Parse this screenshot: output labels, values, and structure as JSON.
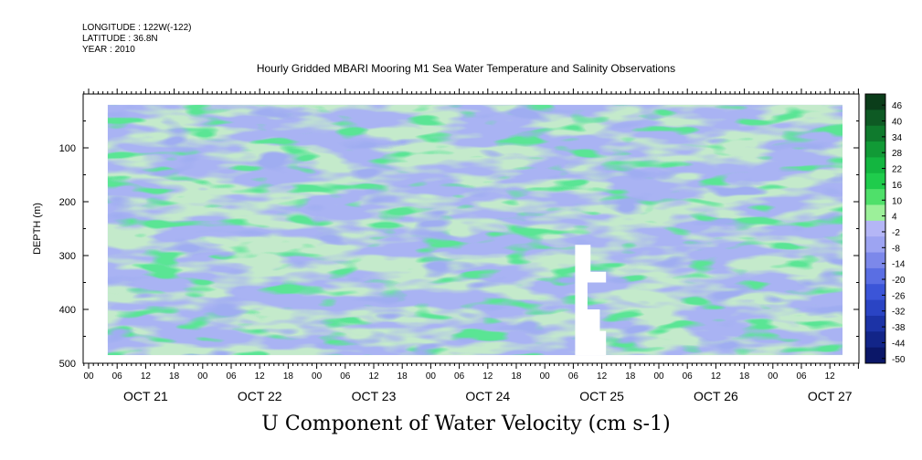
{
  "header": {
    "longitude": "LONGITUDE : 122W(-122)",
    "latitude": "LATITUDE : 36.8N",
    "year": "YEAR : 2010"
  },
  "chart_data": {
    "type": "heatmap",
    "title": "Hourly Gridded MBARI Mooring M1 Sea Water Temperature and Salinity Observations",
    "caption": "U Component of Water Velocity (cm s-1)",
    "ylabel": "DEPTH (m)",
    "y_reversed": true,
    "ylim": [
      500,
      0
    ],
    "y_ticks": [
      100,
      200,
      300,
      400,
      500
    ],
    "x_days": [
      "OCT 21",
      "OCT 22",
      "OCT 23",
      "OCT 24",
      "OCT 25",
      "OCT 26",
      "OCT 27"
    ],
    "x_hour_ticks": [
      "00",
      "06",
      "12",
      "18"
    ],
    "xlim_hours_from_oct20_18": [
      0,
      160
    ],
    "data_extent": {
      "hours_from_oct20_18": [
        4,
        160
      ],
      "depth_m": [
        20,
        485
      ]
    },
    "colorbar": {
      "levels": [
        46,
        40,
        34,
        28,
        22,
        16,
        10,
        4,
        -2,
        -8,
        -14,
        -20,
        -26,
        -32,
        -38,
        -44,
        -50
      ],
      "colors_top_to_bottom": [
        "#0b3d1a",
        "#0e5a24",
        "#0f7a2d",
        "#119a36",
        "#13b640",
        "#1fcc4c",
        "#4fe06a",
        "#9cf09a",
        "#b4b6f6",
        "#9da4f2",
        "#7c88ea",
        "#5a6ee3",
        "#3b55d8",
        "#2a44c4",
        "#1c33a6",
        "#122588",
        "#0b1768"
      ]
    },
    "grid": false,
    "legend": "right colorbar",
    "note_missing": "white gap near OCT 25 00-06, depth 280-490 m"
  }
}
